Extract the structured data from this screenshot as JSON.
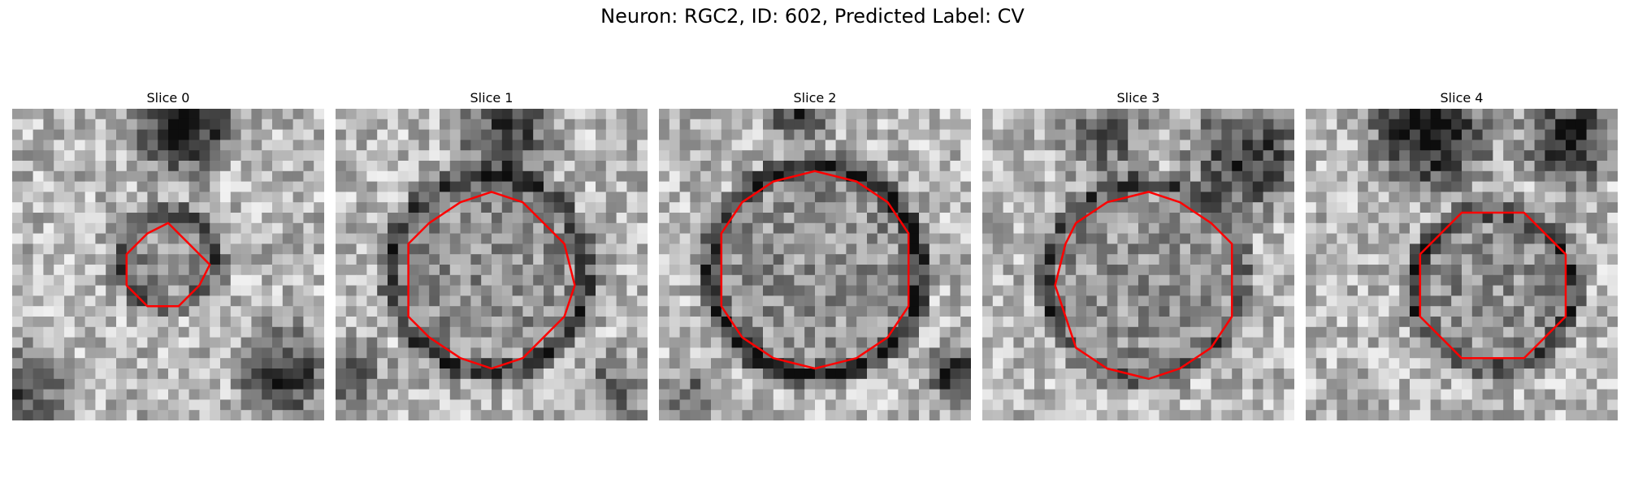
{
  "figure": {
    "title": "Neuron: RGC2, ID: 602, Predicted Label: CV"
  },
  "panels": [
    {
      "title": "Slice 0",
      "contour_color": "#ff0000"
    },
    {
      "title": "Slice 1",
      "contour_color": "#ff0000"
    },
    {
      "title": "Slice 2",
      "contour_color": "#ff0000"
    },
    {
      "title": "Slice 3",
      "contour_color": "#ff0000"
    },
    {
      "title": "Slice 4",
      "contour_color": "#ff0000"
    }
  ],
  "colormap": "gray"
}
